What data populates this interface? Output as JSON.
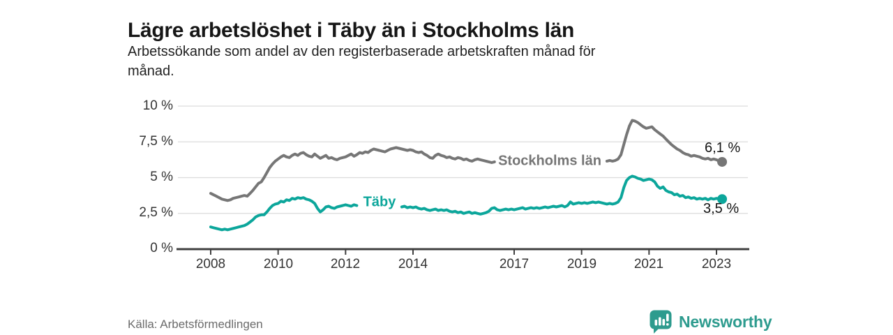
{
  "header": {
    "title": "Lägre arbetslöshet i Täby än i Stockholms län",
    "subtitle_line1": "Arbetssökande som andel av den registerbaserade arbetskraften månad för",
    "subtitle_line2": "månad."
  },
  "footer": {
    "source": "Källa: Arbetsförmedlingen",
    "brand": "Newsworthy",
    "brand_color": "#2d9b8e"
  },
  "chart_data": {
    "type": "line",
    "title": "Lägre arbetslöshet i Täby än i Stockholms län",
    "subtitle": "Arbetssökande som andel av den registerbaserade arbetskraften månad för månad.",
    "unit": "%",
    "x_start_year": 2008,
    "x_step_months": 1,
    "x_end_label_note": "monthly data Jan 2008 - Mar 2023",
    "ylim": [
      0,
      10
    ],
    "grid": true,
    "legend_position": "inline-on-line",
    "y_ticks": [
      {
        "label": "10 %",
        "value": 10
      },
      {
        "label": "7,5 %",
        "value": 7.5
      },
      {
        "label": "5 %",
        "value": 5
      },
      {
        "label": "2,5 %",
        "value": 2.5
      },
      {
        "label": "0 %",
        "value": 0
      }
    ],
    "x_ticks": [
      {
        "label": "2008",
        "year": 2008
      },
      {
        "label": "2010",
        "year": 2010
      },
      {
        "label": "2012",
        "year": 2012
      },
      {
        "label": "2014",
        "year": 2014
      },
      {
        "label": "2017",
        "year": 2017
      },
      {
        "label": "2019",
        "year": 2019
      },
      {
        "label": "2021",
        "year": 2021
      },
      {
        "label": "2023",
        "year": 2023
      }
    ],
    "series": [
      {
        "key": "stockholms-lan",
        "name": "Stockholms län",
        "color": "#767676",
        "end_label": "6,1 %",
        "end_value": 6.1,
        "label_gap": [
          2016.42,
          2019.72
        ],
        "values": [
          3.9,
          3.8,
          3.7,
          3.6,
          3.5,
          3.45,
          3.4,
          3.45,
          3.55,
          3.6,
          3.65,
          3.7,
          3.75,
          3.7,
          3.9,
          4.1,
          4.35,
          4.6,
          4.7,
          5.0,
          5.35,
          5.7,
          5.95,
          6.15,
          6.3,
          6.45,
          6.55,
          6.45,
          6.4,
          6.55,
          6.65,
          6.55,
          6.7,
          6.75,
          6.6,
          6.5,
          6.45,
          6.65,
          6.5,
          6.35,
          6.45,
          6.55,
          6.35,
          6.4,
          6.3,
          6.25,
          6.35,
          6.4,
          6.45,
          6.55,
          6.65,
          6.5,
          6.6,
          6.75,
          6.7,
          6.8,
          6.75,
          6.9,
          7.0,
          6.95,
          6.9,
          6.85,
          6.8,
          6.9,
          7.0,
          7.05,
          7.1,
          7.05,
          7.0,
          6.95,
          6.9,
          6.95,
          6.9,
          6.8,
          6.75,
          6.8,
          6.65,
          6.55,
          6.4,
          6.35,
          6.55,
          6.65,
          6.55,
          6.5,
          6.4,
          6.45,
          6.35,
          6.3,
          6.4,
          6.35,
          6.25,
          6.3,
          6.2,
          6.15,
          6.25,
          6.3,
          6.25,
          6.2,
          6.15,
          6.1,
          6.05,
          6.1,
          6.05,
          6.1,
          6.15,
          6.1,
          6.15,
          6.2,
          6.2,
          6.25,
          6.2,
          6.25,
          6.3,
          6.25,
          6.3,
          6.35,
          6.3,
          6.35,
          6.3,
          6.35,
          6.3,
          6.35,
          6.3,
          6.25,
          6.3,
          6.25,
          6.3,
          6.25,
          6.2,
          6.25,
          6.2,
          6.25,
          6.2,
          6.25,
          6.2,
          6.15,
          6.2,
          6.15,
          6.2,
          6.15,
          6.1,
          6.15,
          6.2,
          6.15,
          6.2,
          6.3,
          6.6,
          7.3,
          8.0,
          8.6,
          9.0,
          8.95,
          8.85,
          8.7,
          8.55,
          8.45,
          8.5,
          8.55,
          8.35,
          8.2,
          8.05,
          7.9,
          7.7,
          7.5,
          7.3,
          7.15,
          7.0,
          6.9,
          6.75,
          6.65,
          6.6,
          6.5,
          6.55,
          6.5,
          6.45,
          6.35,
          6.3,
          6.35,
          6.25,
          6.3,
          6.25,
          6.15,
          6.1
        ]
      },
      {
        "key": "taby",
        "name": "Täby",
        "color": "#0ca69b",
        "end_label": "3,5 %",
        "end_value": 3.5,
        "label_gap": [
          2012.38,
          2013.62
        ],
        "values": [
          1.55,
          1.5,
          1.45,
          1.4,
          1.35,
          1.4,
          1.35,
          1.4,
          1.45,
          1.5,
          1.55,
          1.6,
          1.65,
          1.75,
          1.9,
          2.05,
          2.25,
          2.35,
          2.4,
          2.4,
          2.6,
          2.85,
          3.05,
          3.15,
          3.2,
          3.35,
          3.3,
          3.45,
          3.4,
          3.55,
          3.5,
          3.6,
          3.55,
          3.6,
          3.5,
          3.45,
          3.35,
          3.2,
          2.85,
          2.6,
          2.75,
          2.95,
          3.0,
          2.9,
          2.85,
          2.95,
          3.0,
          3.05,
          3.1,
          3.05,
          3.0,
          3.1,
          3.05,
          3.15,
          3.1,
          3.2,
          3.15,
          3.1,
          3.2,
          3.15,
          3.2,
          3.15,
          3.25,
          3.2,
          3.1,
          3.15,
          3.05,
          3.0,
          2.95,
          3.0,
          2.9,
          2.95,
          2.9,
          2.95,
          2.85,
          2.8,
          2.85,
          2.75,
          2.7,
          2.75,
          2.8,
          2.7,
          2.75,
          2.7,
          2.75,
          2.65,
          2.6,
          2.65,
          2.55,
          2.6,
          2.5,
          2.55,
          2.6,
          2.5,
          2.55,
          2.5,
          2.45,
          2.5,
          2.55,
          2.65,
          2.85,
          2.9,
          2.75,
          2.7,
          2.75,
          2.8,
          2.75,
          2.8,
          2.75,
          2.8,
          2.85,
          2.9,
          2.8,
          2.85,
          2.9,
          2.85,
          2.9,
          2.85,
          2.9,
          2.95,
          2.9,
          2.95,
          3.0,
          2.95,
          3.0,
          3.05,
          2.95,
          3.05,
          3.3,
          3.15,
          3.2,
          3.25,
          3.2,
          3.25,
          3.2,
          3.25,
          3.3,
          3.25,
          3.3,
          3.25,
          3.2,
          3.15,
          3.2,
          3.15,
          3.2,
          3.3,
          3.6,
          4.3,
          4.8,
          5.0,
          5.1,
          5.05,
          4.95,
          4.9,
          4.8,
          4.85,
          4.9,
          4.85,
          4.7,
          4.4,
          4.25,
          4.35,
          4.1,
          4.0,
          3.95,
          3.8,
          3.85,
          3.7,
          3.75,
          3.6,
          3.65,
          3.55,
          3.6,
          3.5,
          3.55,
          3.5,
          3.55,
          3.45,
          3.55,
          3.5,
          3.55,
          3.5,
          3.5
        ]
      }
    ]
  }
}
